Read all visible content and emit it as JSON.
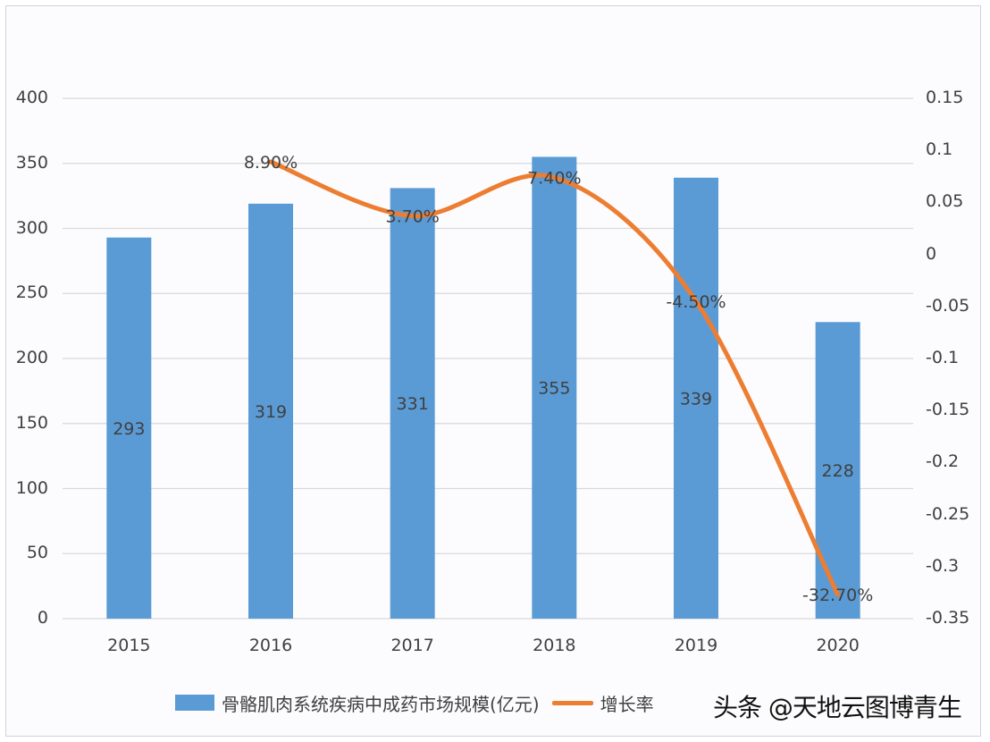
{
  "chart_data": {
    "type": "bar+line",
    "title": "",
    "categories": [
      "2015",
      "2016",
      "2017",
      "2018",
      "2019",
      "2020"
    ],
    "series": [
      {
        "name": "骨骼肌肉系统疾病中成药市场规模(亿元)",
        "type": "bar",
        "axis": "left",
        "color": "#5b9bd5",
        "values": [
          293,
          319,
          331,
          355,
          339,
          228
        ],
        "labels": [
          "293",
          "319",
          "331",
          "355",
          "339",
          "228"
        ]
      },
      {
        "name": "增长率",
        "type": "line",
        "axis": "right",
        "color": "#ed7d31",
        "smooth": true,
        "values": [
          null,
          0.089,
          0.037,
          0.074,
          -0.045,
          -0.327
        ],
        "labels": [
          "",
          "8.90%",
          "3.70%",
          "7.40%",
          "-4.50%",
          "-32.70%"
        ]
      }
    ],
    "left_axis": {
      "ylim": [
        0,
        400
      ],
      "ticks": [
        "400",
        "350",
        "300",
        "250",
        "200",
        "150",
        "100",
        "50",
        "0"
      ]
    },
    "right_axis": {
      "ylim": [
        -0.35,
        0.15
      ],
      "ticks": [
        "0.15",
        "0.1",
        "0.05",
        "0",
        "-0.05",
        "-0.1",
        "-0.15",
        "-0.2",
        "-0.25",
        "-0.3",
        "-0.35"
      ]
    },
    "xlabel": "",
    "ylabel": "",
    "grid": true,
    "legend_position": "bottom"
  },
  "legend": {
    "bar_label": "骨骼肌肉系统疾病中成药市场规模(亿元)",
    "line_label": "增长率"
  },
  "watermark": "头条 @天地云图博青生"
}
